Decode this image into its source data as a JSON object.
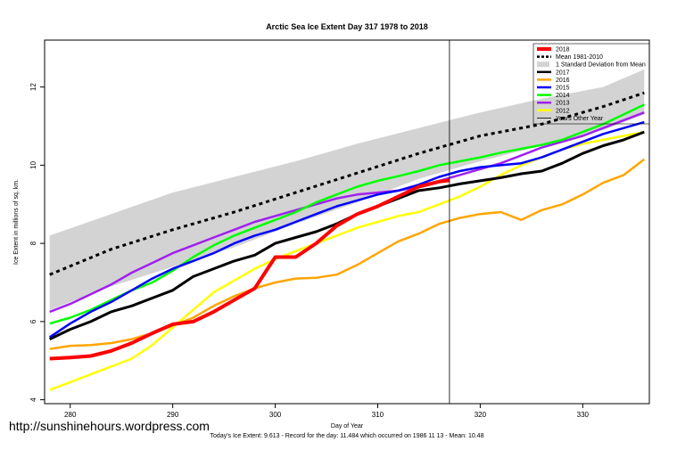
{
  "chart_data": {
    "type": "line",
    "title": "Arctic Sea Ice Extent Day 317 1978 to 2018",
    "xlabel": "Day of Year",
    "ylabel": "Ice Extent in millions of sq. km.",
    "xlim": [
      277.5,
      336.5
    ],
    "ylim": [
      3.9,
      13.2
    ],
    "xticks": [
      280,
      290,
      300,
      310,
      320,
      330
    ],
    "yticks": [
      4,
      6,
      8,
      10,
      12
    ],
    "marker_day": 317,
    "footer": "Today's Ice Extent: 9.613  - Record for the day: 11.484 which occurred on 1986 11 13  - Mean: 10.48",
    "legend": {
      "position": "top-right",
      "entries": [
        {
          "label": "2018",
          "color": "#ff0000",
          "style": "solid"
        },
        {
          "label": "Mean 1981-2010",
          "color": "#000000",
          "style": "dashed"
        },
        {
          "label": "1 Standard Deviation from Mean",
          "color": "#cccccc",
          "style": "band"
        },
        {
          "label": "2017",
          "color": "#000000",
          "style": "solid"
        },
        {
          "label": "2016",
          "color": "#ffa500",
          "style": "solid"
        },
        {
          "label": "2015",
          "color": "#0000ff",
          "style": "solid"
        },
        {
          "label": "2014",
          "color": "#00ff00",
          "style": "solid"
        },
        {
          "label": "2013",
          "color": "#a020f0",
          "style": "solid"
        },
        {
          "label": "2012",
          "color": "#ffff00",
          "style": "solid"
        },
        {
          "label": "Years Other Year",
          "color": "#000000",
          "style": "thin"
        }
      ]
    },
    "mean": {
      "x": [
        278,
        284,
        290,
        296,
        302,
        308,
        314,
        320,
        326,
        332,
        336
      ],
      "y": [
        7.2,
        7.85,
        8.35,
        8.8,
        9.3,
        9.8,
        10.3,
        10.75,
        11.05,
        11.5,
        11.85
      ]
    },
    "std_band": {
      "x": [
        278,
        284,
        290,
        296,
        302,
        308,
        314,
        320,
        326,
        332,
        336
      ],
      "upper": [
        8.2,
        8.75,
        9.3,
        9.7,
        10.1,
        10.55,
        10.95,
        11.35,
        11.7,
        12.0,
        12.45
      ],
      "lower": [
        6.3,
        6.9,
        7.4,
        7.9,
        8.5,
        9.05,
        9.65,
        10.1,
        10.5,
        10.9,
        11.3
      ]
    },
    "series": [
      {
        "name": "2018",
        "color": "#ff0000",
        "width": 4,
        "x": [
          278,
          280,
          282,
          284,
          286,
          288,
          290,
          292,
          294,
          296,
          298,
          300,
          302,
          304,
          306,
          308,
          310,
          312,
          314,
          316,
          317
        ],
        "y": [
          5.05,
          5.08,
          5.12,
          5.25,
          5.45,
          5.7,
          5.93,
          6.0,
          6.25,
          6.55,
          6.85,
          7.65,
          7.65,
          8.0,
          8.45,
          8.75,
          8.95,
          9.2,
          9.45,
          9.58,
          9.613
        ]
      },
      {
        "name": "2017",
        "color": "#000000",
        "width": 3,
        "x": [
          278,
          280,
          282,
          284,
          286,
          288,
          290,
          292,
          294,
          296,
          298,
          300,
          302,
          304,
          306,
          308,
          310,
          312,
          314,
          316,
          318,
          320,
          322,
          324,
          326,
          328,
          330,
          332,
          334,
          336
        ],
        "y": [
          5.55,
          5.8,
          6.0,
          6.25,
          6.4,
          6.6,
          6.8,
          7.15,
          7.35,
          7.55,
          7.7,
          8.0,
          8.15,
          8.3,
          8.5,
          8.75,
          8.95,
          9.15,
          9.35,
          9.42,
          9.52,
          9.6,
          9.68,
          9.78,
          9.85,
          10.05,
          10.3,
          10.5,
          10.65,
          10.85
        ]
      },
      {
        "name": "2016",
        "color": "#ffa500",
        "width": 2.5,
        "x": [
          278,
          280,
          282,
          284,
          286,
          288,
          290,
          292,
          294,
          296,
          298,
          300,
          302,
          304,
          306,
          308,
          310,
          312,
          314,
          316,
          318,
          320,
          322,
          324,
          326,
          328,
          330,
          332,
          334,
          336
        ],
        "y": [
          5.3,
          5.38,
          5.4,
          5.45,
          5.55,
          5.7,
          5.9,
          6.1,
          6.4,
          6.65,
          6.85,
          7.0,
          7.1,
          7.12,
          7.2,
          7.45,
          7.75,
          8.05,
          8.25,
          8.5,
          8.65,
          8.75,
          8.8,
          8.6,
          8.85,
          9.0,
          9.25,
          9.55,
          9.75,
          10.15
        ]
      },
      {
        "name": "2015",
        "color": "#0000ff",
        "width": 2.5,
        "x": [
          278,
          280,
          282,
          284,
          286,
          288,
          290,
          292,
          294,
          296,
          298,
          300,
          302,
          304,
          306,
          308,
          310,
          312,
          314,
          316,
          318,
          320,
          322,
          324,
          326,
          328,
          330,
          332,
          334,
          336
        ],
        "y": [
          5.6,
          5.95,
          6.25,
          6.5,
          6.8,
          7.1,
          7.35,
          7.55,
          7.75,
          8.0,
          8.2,
          8.35,
          8.55,
          8.75,
          8.95,
          9.1,
          9.25,
          9.35,
          9.5,
          9.7,
          9.85,
          9.95,
          10.0,
          10.05,
          10.2,
          10.4,
          10.6,
          10.8,
          10.95,
          11.1
        ]
      },
      {
        "name": "2014",
        "color": "#00ff00",
        "width": 2.5,
        "x": [
          278,
          280,
          282,
          284,
          286,
          288,
          290,
          292,
          294,
          296,
          298,
          300,
          302,
          304,
          306,
          308,
          310,
          312,
          314,
          316,
          318,
          320,
          322,
          324,
          326,
          328,
          330,
          332,
          334,
          336
        ],
        "y": [
          5.95,
          6.1,
          6.3,
          6.55,
          6.8,
          7.0,
          7.3,
          7.65,
          7.95,
          8.2,
          8.4,
          8.6,
          8.8,
          9.05,
          9.25,
          9.45,
          9.6,
          9.72,
          9.85,
          10.0,
          10.1,
          10.2,
          10.32,
          10.42,
          10.52,
          10.65,
          10.85,
          11.05,
          11.3,
          11.55
        ]
      },
      {
        "name": "2013",
        "color": "#a020f0",
        "width": 2.5,
        "x": [
          278,
          280,
          282,
          284,
          286,
          288,
          290,
          292,
          294,
          296,
          298,
          300,
          302,
          304,
          306,
          308,
          310,
          312,
          314,
          316,
          318,
          320,
          322,
          324,
          326,
          328,
          330,
          332,
          334,
          336
        ],
        "y": [
          6.25,
          6.45,
          6.7,
          6.95,
          7.25,
          7.5,
          7.75,
          7.95,
          8.15,
          8.35,
          8.55,
          8.7,
          8.85,
          9.0,
          9.15,
          9.25,
          9.3,
          9.35,
          9.45,
          9.6,
          9.75,
          9.9,
          10.05,
          10.25,
          10.45,
          10.6,
          10.75,
          10.95,
          11.15,
          11.35
        ]
      },
      {
        "name": "2012",
        "color": "#ffff00",
        "width": 2.5,
        "x": [
          278,
          280,
          282,
          284,
          286,
          288,
          290,
          292,
          294,
          296,
          298,
          300,
          302,
          304,
          306,
          308,
          310,
          312,
          314,
          316,
          318,
          320,
          322,
          324,
          326,
          328,
          330,
          332,
          334,
          336
        ],
        "y": [
          4.25,
          4.45,
          4.65,
          4.85,
          5.05,
          5.4,
          5.85,
          6.3,
          6.75,
          7.05,
          7.35,
          7.6,
          7.8,
          8.0,
          8.2,
          8.4,
          8.55,
          8.7,
          8.8,
          9.0,
          9.2,
          9.45,
          9.75,
          10.0,
          10.2,
          10.4,
          10.55,
          10.65,
          10.75,
          10.85
        ]
      }
    ]
  },
  "watermark": "http://sunshinehours.wordpress.com"
}
